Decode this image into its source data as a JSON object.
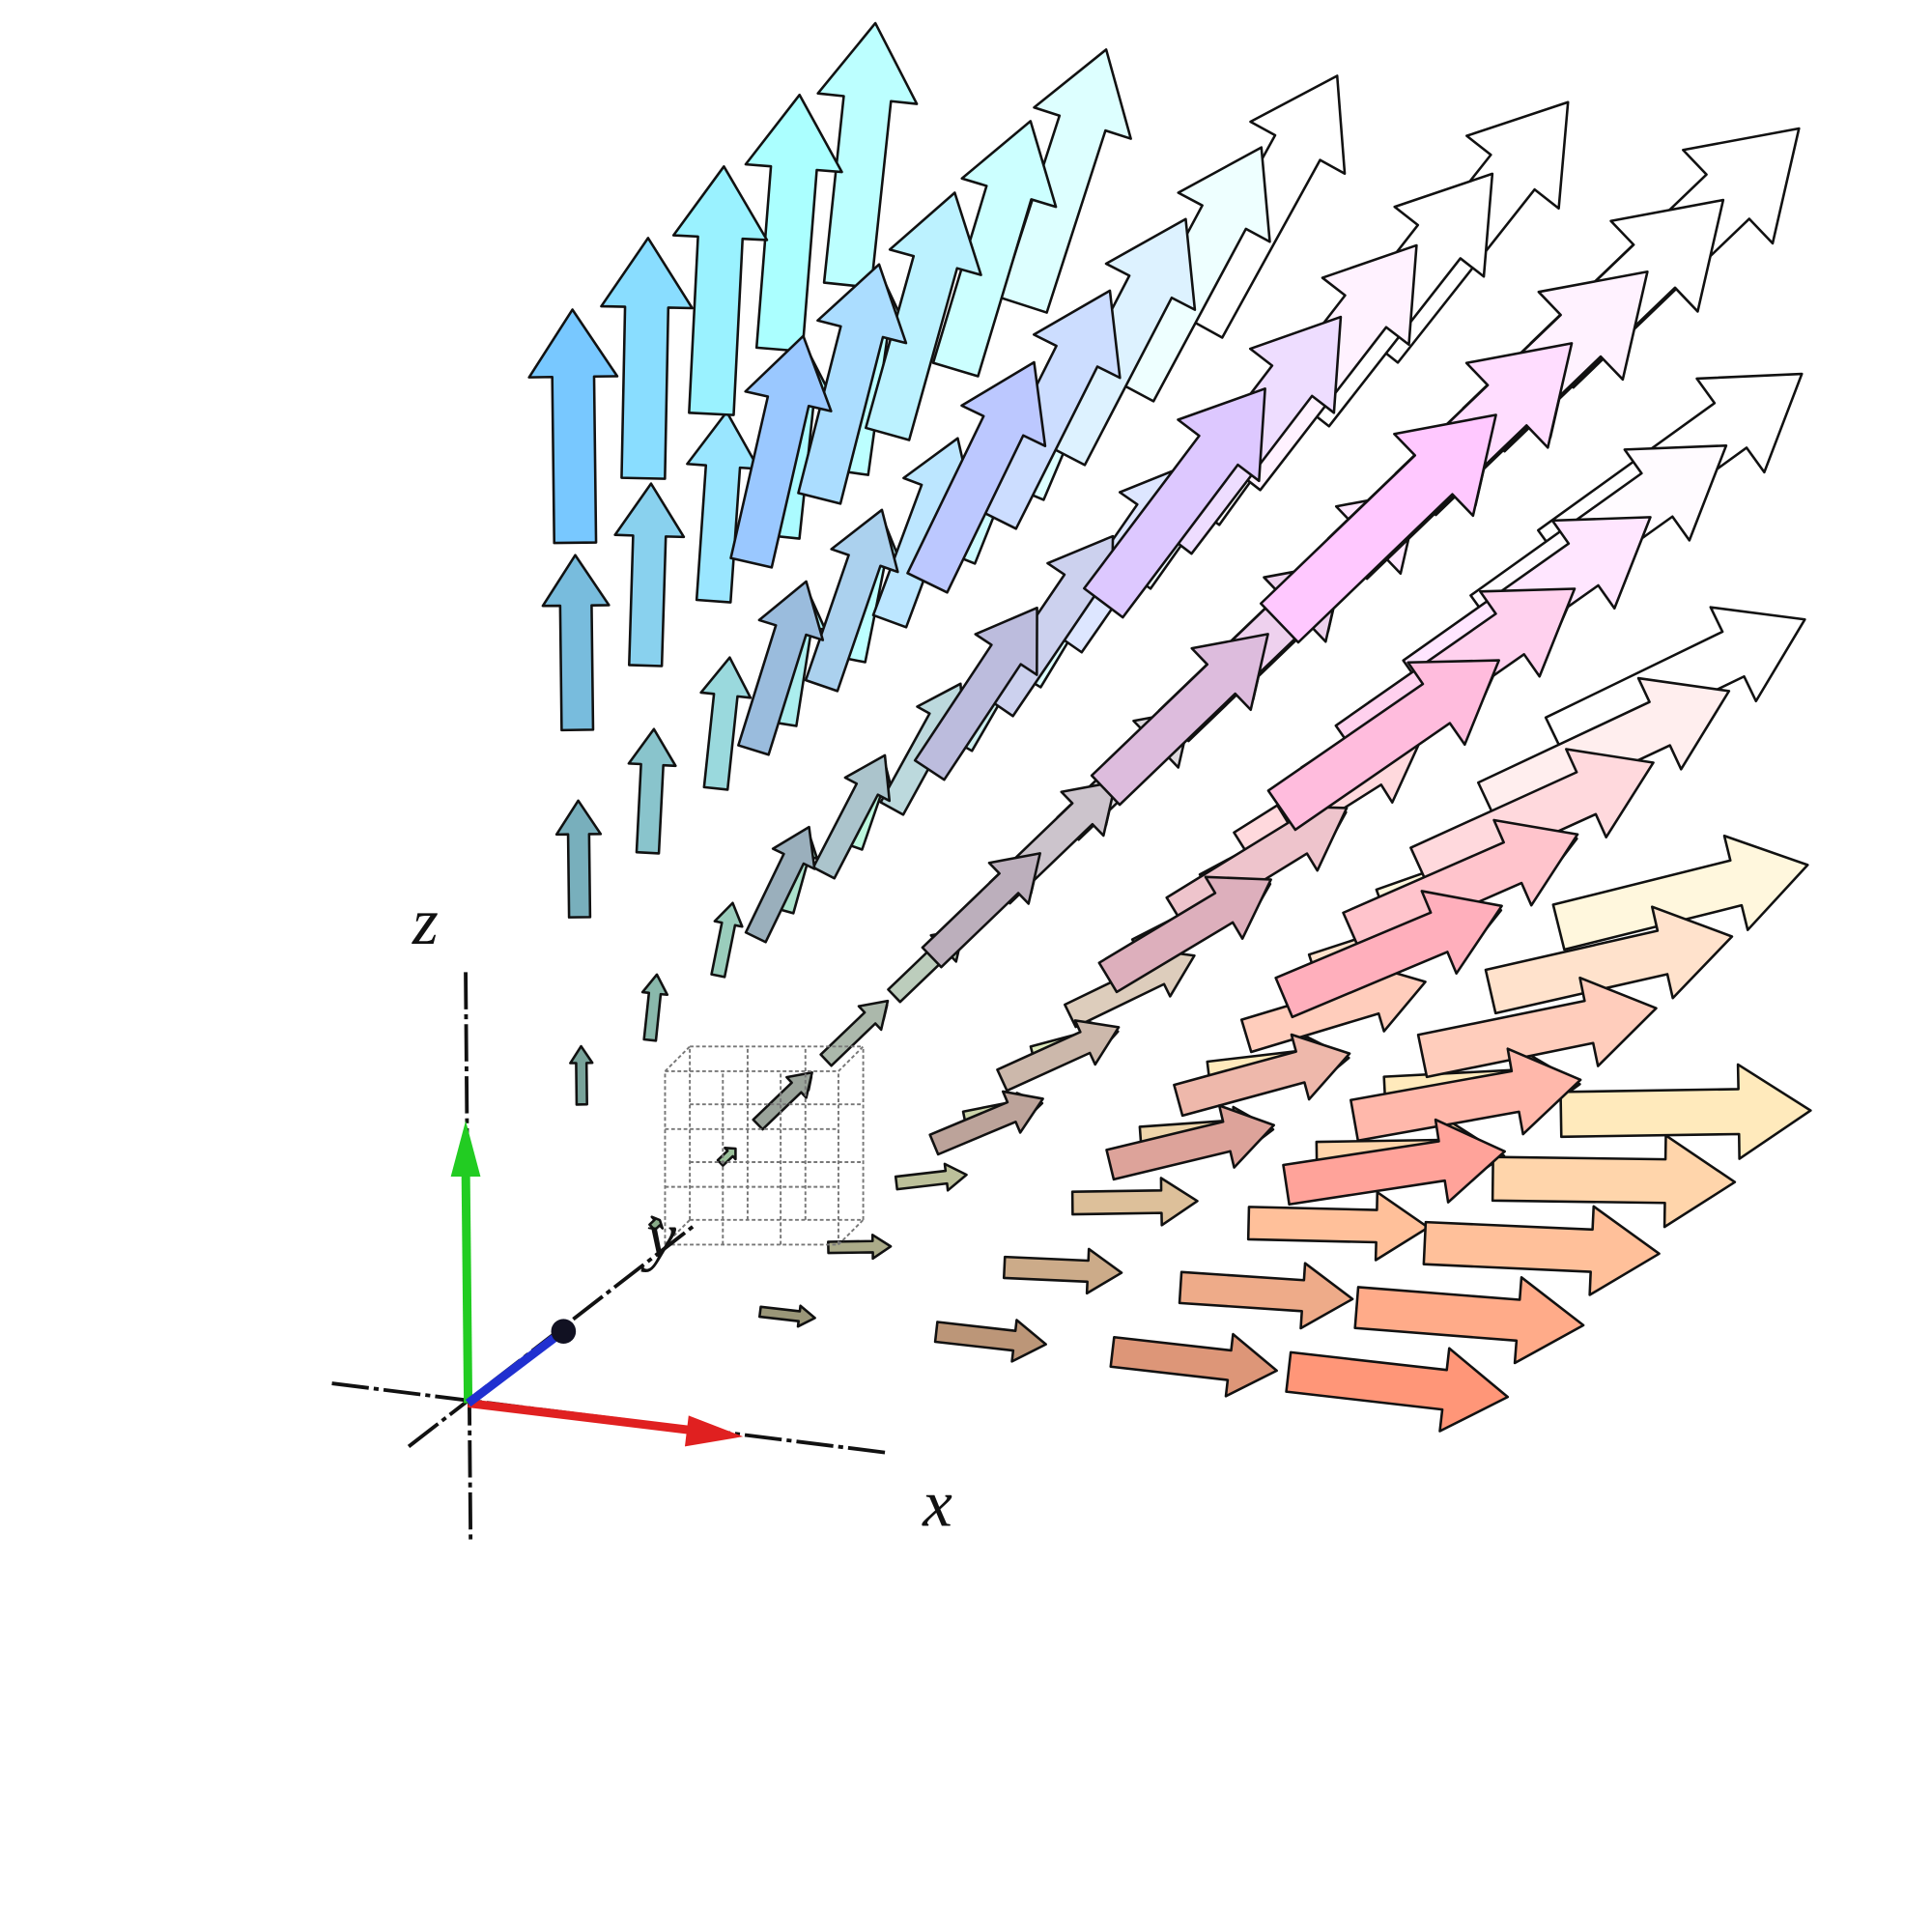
{
  "axes": {
    "x_label": "x",
    "y_label": "y",
    "z_label": "z"
  }
}
